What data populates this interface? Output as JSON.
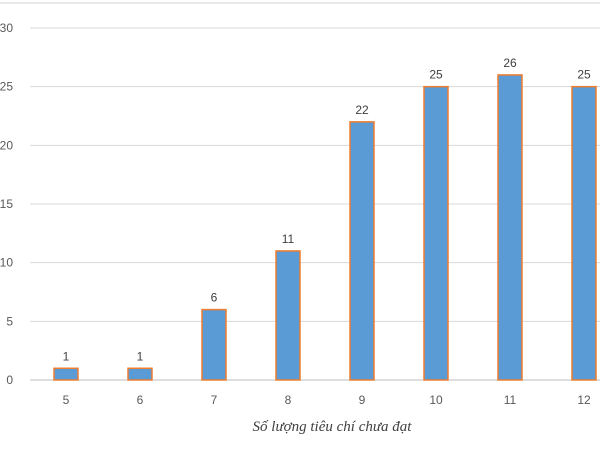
{
  "chart_data": {
    "type": "bar",
    "categories": [
      "5",
      "6",
      "7",
      "8",
      "9",
      "10",
      "11",
      "12"
    ],
    "values": [
      1,
      1,
      6,
      11,
      22,
      25,
      26,
      25
    ],
    "data_labels": [
      "1",
      "1",
      "6",
      "11",
      "22",
      "25",
      "26",
      "25"
    ],
    "title": "",
    "xlabel": "Số lượng tiêu chí chưa đạt",
    "ylabel": "",
    "ylim": [
      0,
      30
    ],
    "yticks": [
      0,
      5,
      10,
      15,
      20,
      25,
      30
    ],
    "grid": true,
    "legend": "none",
    "colors": {
      "bar_fill": "#5B9BD5",
      "bar_stroke": "#ED7D31",
      "gridline": "#D9D9D9",
      "axis_line": "#BFBFBF",
      "tick_text": "#595959",
      "label_text": "#404040"
    }
  }
}
